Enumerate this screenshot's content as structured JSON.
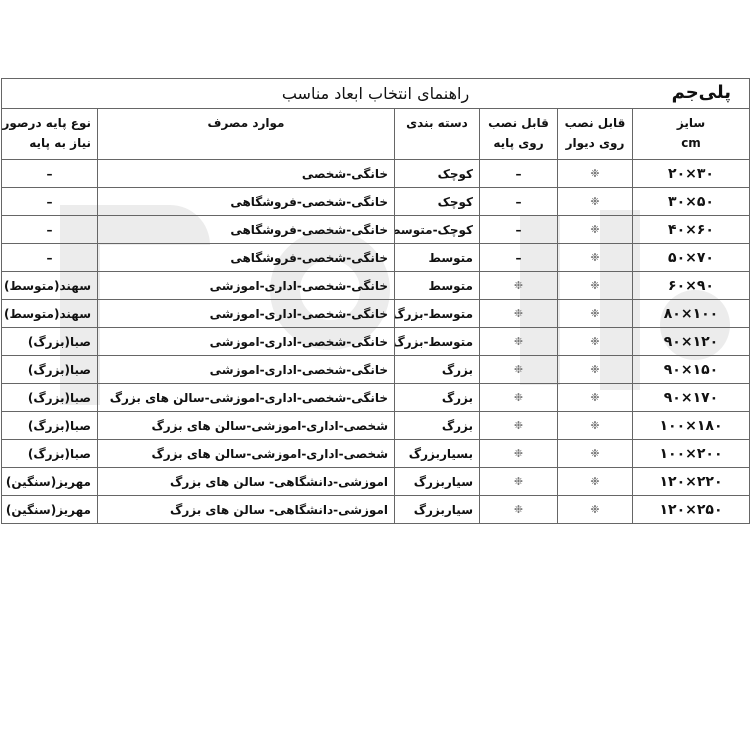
{
  "title": "راهنمای انتخاب ابعاد مناسب",
  "logo_text": "پلی‌جم",
  "headers": {
    "size": "سایز",
    "size_unit": "cm",
    "wall_1": "قابل نصب",
    "wall_2": "روی دیوار",
    "base_1": "قابل نصب",
    "base_2": "روی پایه",
    "category": "دسته بندی",
    "uses": "موارد مصرف",
    "base_type_1": "نوع پایه درصورت",
    "base_type_2": "نیاز به پایه"
  },
  "rows": [
    {
      "size": "۲۰×۳۰",
      "wall": "❉",
      "base": "–",
      "category": "کوچک",
      "uses": "خانگی-شخصی",
      "base_type": "–"
    },
    {
      "size": "۳۰×۵۰",
      "wall": "❉",
      "base": "–",
      "category": "کوچک",
      "uses": "خانگی-شخصی-فروشگاهی",
      "base_type": "–"
    },
    {
      "size": "۴۰×۶۰",
      "wall": "❉",
      "base": "–",
      "category": "کوچک-متوسط",
      "uses": "خانگی-شخصی-فروشگاهی",
      "base_type": "–"
    },
    {
      "size": "۵۰×۷۰",
      "wall": "❉",
      "base": "–",
      "category": "متوسط",
      "uses": "خانگی-شخصی-فروشگاهی",
      "base_type": "–"
    },
    {
      "size": "۶۰×۹۰",
      "wall": "❉",
      "base": "❉",
      "category": "متوسط",
      "uses": "خانگی-شخصی-اداری-اموزشی",
      "base_type": "سهند(متوسط)"
    },
    {
      "size": "۸۰×۱۰۰",
      "wall": "❉",
      "base": "❉",
      "category": "متوسط-بزرگ",
      "uses": "خانگی-شخصی-اداری-اموزشی",
      "base_type": "سهند(متوسط)"
    },
    {
      "size": "۹۰×۱۲۰",
      "wall": "❉",
      "base": "❉",
      "category": "متوسط-بزرگ",
      "uses": "خانگی-شخصی-اداری-اموزشی",
      "base_type": "صبا(بزرگ)"
    },
    {
      "size": "۹۰×۱۵۰",
      "wall": "❉",
      "base": "❉",
      "category": "بزرگ",
      "uses": "خانگی-شخصی-اداری-اموزشی",
      "base_type": "صبا(بزرگ)"
    },
    {
      "size": "۹۰×۱۷۰",
      "wall": "❉",
      "base": "❉",
      "category": "بزرگ",
      "uses": "خانگی-شخصی-اداری-اموزشی-سالن های بزرگ",
      "base_type": "صبا(بزرگ)"
    },
    {
      "size": "۱۰۰×۱۸۰",
      "wall": "❉",
      "base": "❉",
      "category": "بزرگ",
      "uses": "شخصی-اداری-اموزشی-سالن های بزرگ",
      "base_type": "صبا(بزرگ)"
    },
    {
      "size": "۱۰۰×۲۰۰",
      "wall": "❉",
      "base": "❉",
      "category": "بسیاربزرگ",
      "uses": "شخصی-اداری-اموزشی-سالن های بزرگ",
      "base_type": "صبا(بزرگ)"
    },
    {
      "size": "۱۲۰×۲۲۰",
      "wall": "❉",
      "base": "❉",
      "category": "سیاربزرگ",
      "uses": "اموزشی-دانشگاهی- سالن های بزرگ",
      "base_type": "مهریز(سنگین)"
    },
    {
      "size": "۱۲۰×۲۵۰",
      "wall": "❉",
      "base": "❉",
      "category": "سیاربزرگ",
      "uses": "اموزشی-دانشگاهی- سالن های بزرگ",
      "base_type": "مهریز(سنگین)"
    }
  ]
}
